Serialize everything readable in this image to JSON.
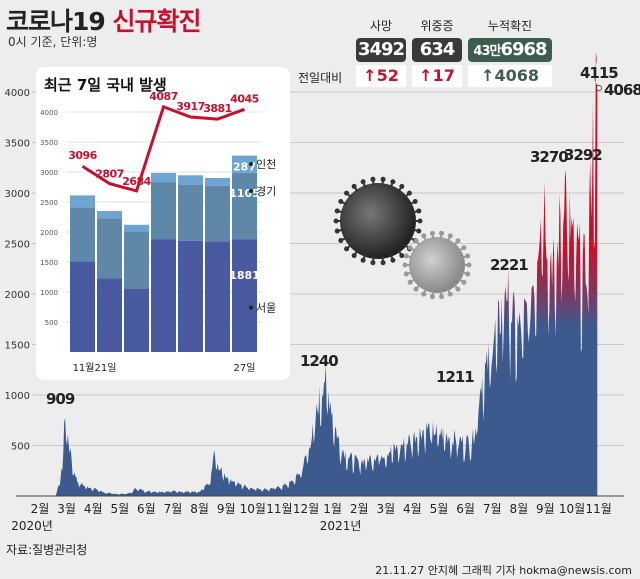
{
  "header": {
    "title_main": "코로나19",
    "title_accent": "신규확진",
    "subtitle": "0시 기준, 단위:명"
  },
  "stats": {
    "death_label": "사망",
    "death_value": "3492",
    "severe_label": "위중증",
    "severe_value": "634",
    "cumulative_label": "누적확진",
    "cumulative_value_man": "43만",
    "cumulative_value_rest": "6968",
    "delta_label": "전일대비",
    "death_delta": "↑52",
    "severe_delta": "↑17",
    "cumulative_delta": "↑4068"
  },
  "footer": {
    "source": "자료:질병관리청",
    "credit": "21.11.27 안지혜 그래픽 기자 hokma@newsis.com"
  },
  "colors": {
    "area_blue": "#3d5a8e",
    "area_red": "#c8102e",
    "inset_dark": "#4a5aa0",
    "inset_mid": "#5f87a8",
    "inset_light": "#6ea4d2",
    "line_red": "#c8102e"
  },
  "chart_data": [
    {
      "type": "area",
      "title": "코로나19 신규확진",
      "ylim": [
        0,
        4150
      ],
      "y_ticks": [
        0,
        500,
        1000,
        1500,
        2000,
        2500,
        3000,
        3500,
        4000
      ],
      "y_tick_labels": [
        "",
        "500",
        "1000",
        "1500",
        "2000",
        "2500",
        "3000",
        "3500",
        "4000"
      ],
      "x_ticks": [
        {
          "label": "2월",
          "month_index": 0
        },
        {
          "label": "3월",
          "month_index": 1
        },
        {
          "label": "4월",
          "month_index": 2
        },
        {
          "label": "5월",
          "month_index": 3
        },
        {
          "label": "6월",
          "month_index": 4
        },
        {
          "label": "7월",
          "month_index": 5
        },
        {
          "label": "8월",
          "month_index": 6
        },
        {
          "label": "9월",
          "month_index": 7
        },
        {
          "label": "10월",
          "month_index": 8
        },
        {
          "label": "11월",
          "month_index": 9
        },
        {
          "label": "12월",
          "month_index": 10
        },
        {
          "label": "1월",
          "month_index": 11
        },
        {
          "label": "2월",
          "month_index": 12
        },
        {
          "label": "3월",
          "month_index": 13
        },
        {
          "label": "4월",
          "month_index": 14
        },
        {
          "label": "5월",
          "month_index": 15
        },
        {
          "label": "6월",
          "month_index": 16
        },
        {
          "label": "7월",
          "month_index": 17
        },
        {
          "label": "8월",
          "month_index": 18
        },
        {
          "label": "9월",
          "month_index": 19
        },
        {
          "label": "10월",
          "month_index": 20
        },
        {
          "label": "11월",
          "month_index": 21
        }
      ],
      "year_labels": [
        {
          "label": "2020년",
          "month_index": 0
        },
        {
          "label": "2021년",
          "month_index": 11
        }
      ],
      "points": [
        [
          0,
          0
        ],
        [
          0.6,
          5
        ],
        [
          0.85,
          300
        ],
        [
          0.95,
          909
        ],
        [
          1.05,
          600
        ],
        [
          1.2,
          350
        ],
        [
          1.4,
          150
        ],
        [
          1.7,
          100
        ],
        [
          2,
          80
        ],
        [
          2.5,
          30
        ],
        [
          3,
          20
        ],
        [
          3.4,
          30
        ],
        [
          3.6,
          80
        ],
        [
          4,
          50
        ],
        [
          4.5,
          45
        ],
        [
          5,
          50
        ],
        [
          5.5,
          45
        ],
        [
          6,
          40
        ],
        [
          6.4,
          150
        ],
        [
          6.55,
          441
        ],
        [
          6.7,
          300
        ],
        [
          7,
          200
        ],
        [
          7.5,
          120
        ],
        [
          8,
          80
        ],
        [
          8.5,
          70
        ],
        [
          9,
          90
        ],
        [
          9.5,
          150
        ],
        [
          9.8,
          250
        ],
        [
          10,
          400
        ],
        [
          10.3,
          700
        ],
        [
          10.5,
          1000
        ],
        [
          10.7,
          1240
        ],
        [
          10.9,
          1000
        ],
        [
          11.1,
          700
        ],
        [
          11.3,
          500
        ],
        [
          11.6,
          400
        ],
        [
          12,
          350
        ],
        [
          12.5,
          400
        ],
        [
          13,
          450
        ],
        [
          13.5,
          500
        ],
        [
          14,
          600
        ],
        [
          14.5,
          700
        ],
        [
          15,
          650
        ],
        [
          15.5,
          600
        ],
        [
          16,
          550
        ],
        [
          16.3,
          600
        ],
        [
          16.6,
          1211
        ],
        [
          16.8,
          1300
        ],
        [
          17,
          1600
        ],
        [
          17.3,
          1800
        ],
        [
          17.5,
          2221
        ],
        [
          17.7,
          1900
        ],
        [
          18,
          1700
        ],
        [
          18.3,
          1900
        ],
        [
          18.6,
          2300
        ],
        [
          18.9,
          3270
        ],
        [
          19.1,
          2600
        ],
        [
          19.4,
          2300
        ],
        [
          19.7,
          3292
        ],
        [
          19.9,
          2800
        ],
        [
          20.2,
          2500
        ],
        [
          20.5,
          2300
        ],
        [
          20.7,
          3100
        ],
        [
          20.85,
          4115
        ],
        [
          20.95,
          4068
        ]
      ],
      "annotations": [
        {
          "text": "909",
          "value": 909
        },
        {
          "text": "1240",
          "value": 1240
        },
        {
          "text": "1211",
          "value": 1211
        },
        {
          "text": "2221",
          "value": 2221
        },
        {
          "text": "3270",
          "value": 3270
        },
        {
          "text": "3292",
          "value": 3292
        },
        {
          "text": "4115",
          "value": 4115
        },
        {
          "text": "4068",
          "value": 4068
        }
      ]
    },
    {
      "type": "bar",
      "title": "최근 7일 국내 발생",
      "stacked": true,
      "ylim": [
        0,
        4250
      ],
      "y_ticks": [
        500,
        1000,
        1500,
        2000,
        2500,
        3000,
        3500,
        4000
      ],
      "categories": [
        "11월21일",
        "",
        "",
        "",
        "",
        "",
        "27일"
      ],
      "series": [
        {
          "name": "서울",
          "values": [
            1510,
            1230,
            1050,
            1875,
            1855,
            1845,
            1881
          ]
        },
        {
          "name": "경기",
          "values": [
            900,
            1000,
            950,
            950,
            935,
            925,
            1105
          ]
        },
        {
          "name": "인천",
          "values": [
            200,
            120,
            120,
            160,
            155,
            130,
            287
          ]
        }
      ],
      "line": {
        "values": [
          3096,
          2807,
          2684,
          4087,
          3917,
          3881,
          4045
        ],
        "labels": [
          "3096",
          "2807",
          "2684",
          "4087",
          "3917",
          "3881",
          "4045"
        ]
      },
      "segment_labels": {
        "seoul": "1881",
        "gyeonggi": "1105",
        "incheon": "287"
      }
    }
  ]
}
